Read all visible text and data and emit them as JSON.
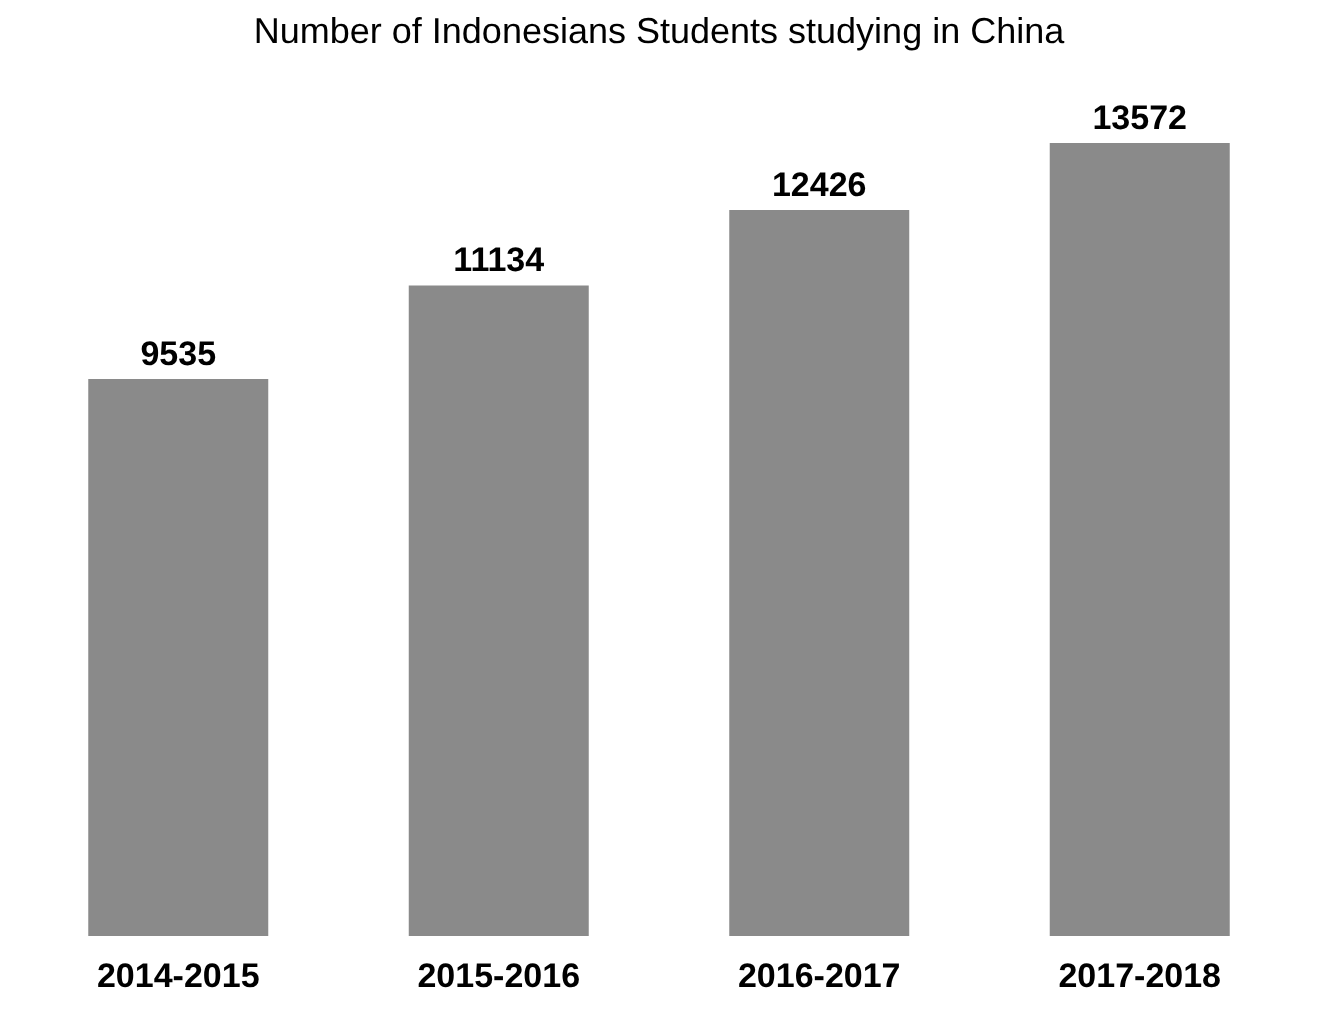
{
  "chart_data": {
    "type": "bar",
    "title": "Number of Indonesians Students studying in China",
    "categories": [
      "2014-2015",
      "2015-2016",
      "2016-2017",
      "2017-2018"
    ],
    "values": [
      9535,
      11134,
      12426,
      13572
    ],
    "color": "#8a8a8a",
    "data_labels": true,
    "grid": false
  }
}
